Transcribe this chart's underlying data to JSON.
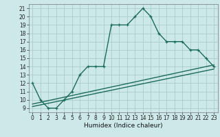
{
  "title": "",
  "xlabel": "Humidex (Indice chaleur)",
  "bg_color": "#cce8e8",
  "grid_color": "#aacccc",
  "line_color": "#1a6b5a",
  "xlim": [
    -0.5,
    23.5
  ],
  "ylim": [
    8.5,
    21.5
  ],
  "xticks": [
    0,
    1,
    2,
    3,
    4,
    5,
    6,
    7,
    8,
    9,
    10,
    11,
    12,
    13,
    14,
    15,
    16,
    17,
    18,
    19,
    20,
    21,
    22,
    23
  ],
  "yticks": [
    9,
    10,
    11,
    12,
    13,
    14,
    15,
    16,
    17,
    18,
    19,
    20,
    21
  ],
  "main_x": [
    0,
    1,
    2,
    3,
    4,
    5,
    6,
    7,
    8,
    9,
    10,
    11,
    12,
    13,
    14,
    15,
    16,
    17,
    18,
    19,
    20,
    21,
    22,
    23
  ],
  "main_y": [
    12,
    10,
    9,
    9,
    10,
    11,
    13,
    14,
    14,
    14,
    19,
    19,
    19,
    20,
    21,
    20,
    18,
    17,
    17,
    17,
    16,
    16,
    15,
    14
  ],
  "line2_x": [
    0,
    23
  ],
  "line2_y": [
    9.5,
    14.2
  ],
  "line3_x": [
    0,
    23
  ],
  "line3_y": [
    9.2,
    13.7
  ],
  "marker_size": 3.5,
  "line_width": 1.0,
  "tick_fontsize": 5.5,
  "xlabel_fontsize": 6.5
}
